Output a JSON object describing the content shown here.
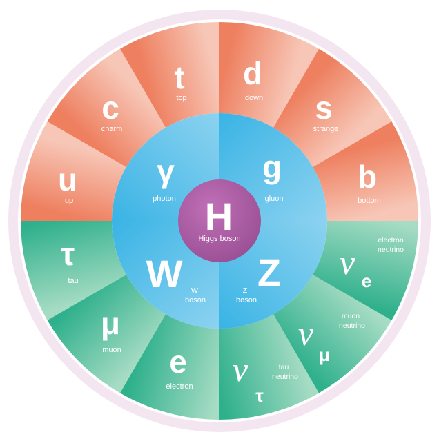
{
  "colors": {
    "ring_border": "#f3e6f1",
    "quark_dark": "#ee8060",
    "quark_light": "#f7c6b6",
    "lepton_dark": "#2fb08c",
    "lepton_light": "#a6dcc4",
    "boson_dark": "#2aaee3",
    "boson_light": "#9cd8f2",
    "higgs": "#b060a8"
  },
  "quarks": [
    {
      "symbol": "u",
      "name": "up"
    },
    {
      "symbol": "c",
      "name": "charm"
    },
    {
      "symbol": "t",
      "name": "top"
    },
    {
      "symbol": "d",
      "name": "down"
    },
    {
      "symbol": "s",
      "name": "strange"
    },
    {
      "symbol": "b",
      "name": "bottom"
    }
  ],
  "leptons": [
    {
      "symbol": "τ",
      "name": "tau"
    },
    {
      "symbol": "μ",
      "name": "muon"
    },
    {
      "symbol": "e",
      "name": "electron"
    },
    {
      "symbol": "ν",
      "sub": "τ",
      "name_line1": "tau",
      "name_line2": "neutrino"
    },
    {
      "symbol": "ν",
      "sub": "μ",
      "name_line1": "muon",
      "name_line2": "neutrino"
    },
    {
      "symbol": "ν",
      "sub": "e",
      "name_line1": "electron",
      "name_line2": "neutrino"
    }
  ],
  "bosons": [
    {
      "symbol": "γ",
      "name": "photon"
    },
    {
      "symbol": "g",
      "name": "gluon"
    },
    {
      "symbol": "W",
      "name_line1": "W",
      "name_line2": "boson"
    },
    {
      "symbol": "Z",
      "name_line1": "Z",
      "name_line2": "boson"
    }
  ],
  "higgs": {
    "symbol": "H",
    "name": "Higgs boson"
  }
}
